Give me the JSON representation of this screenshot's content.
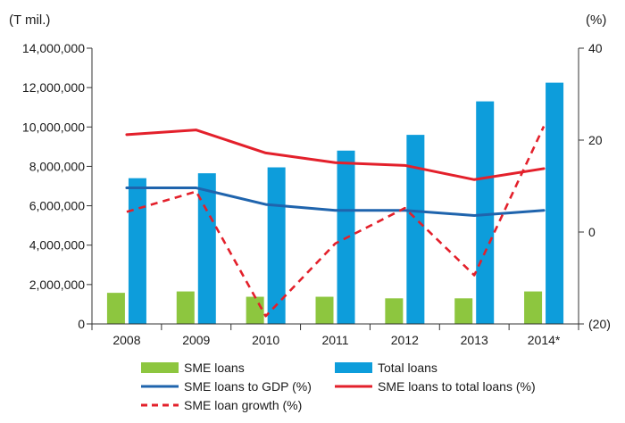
{
  "chart_data": {
    "type": "bar-line-combo",
    "categories": [
      "2008",
      "2009",
      "2010",
      "2011",
      "2012",
      "2013",
      "2014*"
    ],
    "left_axis": {
      "unit_label": "(T mil.)",
      "range": [
        0,
        14000000
      ],
      "ticks": [
        {
          "value": 0,
          "label": "0"
        },
        {
          "value": 2000000,
          "label": "2,000,000"
        },
        {
          "value": 4000000,
          "label": "4,000,000"
        },
        {
          "value": 6000000,
          "label": "6,000,000"
        },
        {
          "value": 8000000,
          "label": "8,000,000"
        },
        {
          "value": 10000000,
          "label": "10,000,000"
        },
        {
          "value": 12000000,
          "label": "12,000,000"
        },
        {
          "value": 14000000,
          "label": "14,000,000"
        }
      ]
    },
    "right_axis": {
      "unit_label": "(%)",
      "range": [
        -20,
        40
      ],
      "ticks": [
        {
          "value": -20,
          "label": "(20)"
        },
        {
          "value": 0,
          "label": "0"
        },
        {
          "value": 20,
          "label": "20"
        },
        {
          "value": 40,
          "label": "40"
        }
      ]
    },
    "bar_series": [
      {
        "name": "SME loans",
        "color": "#8dc63f",
        "values": [
          1580000,
          1650000,
          1380000,
          1380000,
          1300000,
          1300000,
          1650000
        ]
      },
      {
        "name": "Total loans",
        "color": "#0d9ddb",
        "values": [
          7400000,
          7650000,
          7950000,
          8800000,
          9600000,
          11300000,
          12250000
        ]
      }
    ],
    "line_series": [
      {
        "name": "SME loans to GDP (%)",
        "color": "#1f64ad",
        "style": "solid",
        "values": [
          9.6,
          9.6,
          6.0,
          4.7,
          4.7,
          3.6,
          4.7
        ]
      },
      {
        "name": "SME loans to total loans (%)",
        "color": "#e3202b",
        "style": "solid",
        "values": [
          21.2,
          22.2,
          17.2,
          15.1,
          14.5,
          11.4,
          13.8
        ]
      },
      {
        "name": "SME loan growth (%)",
        "color": "#e3202b",
        "style": "dashed",
        "values": [
          4.4,
          8.8,
          -18.3,
          -2.5,
          5.2,
          -9.4,
          23.0
        ]
      }
    ]
  }
}
